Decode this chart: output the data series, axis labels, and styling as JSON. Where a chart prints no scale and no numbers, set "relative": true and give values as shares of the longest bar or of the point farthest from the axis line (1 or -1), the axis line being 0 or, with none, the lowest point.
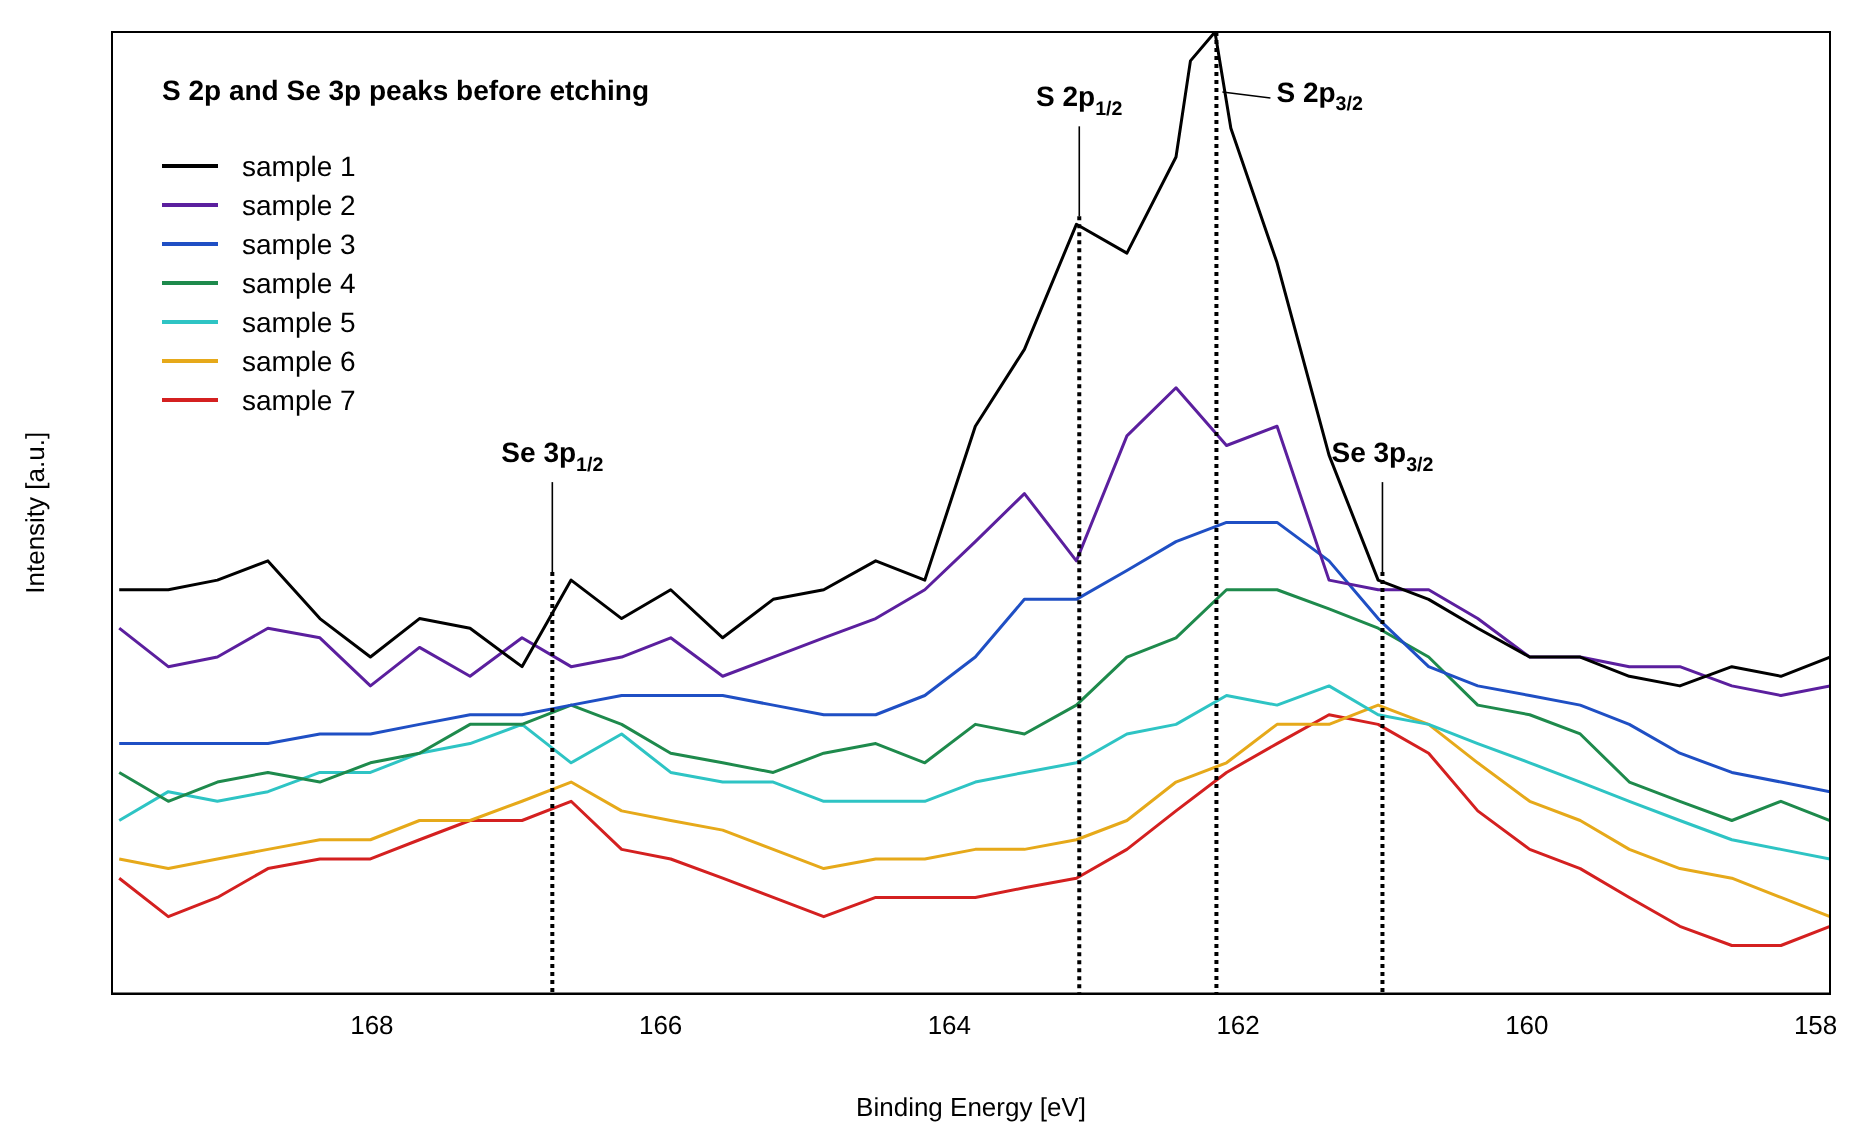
{
  "chart_data": {
    "type": "line",
    "title": "S 2p and Se 3p peaks before etching",
    "xlabel": "Binding Energy [eV]",
    "ylabel": "Intensity [a.u.]",
    "relative": true,
    "legend": "top left",
    "grid": false,
    "xlim": [
      169.8,
      157.9
    ],
    "xticks": [
      168,
      166,
      164,
      162,
      160,
      158
    ],
    "x": [
      169.75,
      169.41,
      169.07,
      168.72,
      168.36,
      168.01,
      167.67,
      167.32,
      166.96,
      166.62,
      166.27,
      165.93,
      165.57,
      165.22,
      164.87,
      164.51,
      164.17,
      163.82,
      163.48,
      163.12,
      162.77,
      162.43,
      162.08,
      161.73,
      161.37,
      161.03,
      160.68,
      160.34,
      159.98,
      159.63,
      159.29,
      158.94,
      158.58,
      158.24,
      157.9
    ],
    "series": [
      {
        "name": "sample 1",
        "color": "#000000",
        "x": [
          169.75,
          169.41,
          169.07,
          168.72,
          168.36,
          168.01,
          167.67,
          167.32,
          166.96,
          166.62,
          166.27,
          165.93,
          165.57,
          165.22,
          164.87,
          164.51,
          164.17,
          163.82,
          163.48,
          163.12,
          162.77,
          162.43,
          162.33,
          162.16,
          162.05,
          161.73,
          161.37,
          161.03,
          160.68,
          160.34,
          159.98,
          159.63,
          159.29,
          158.94,
          158.58,
          158.24,
          157.9
        ],
        "values": [
          0.42,
          0.42,
          0.43,
          0.45,
          0.39,
          0.35,
          0.39,
          0.38,
          0.34,
          0.43,
          0.39,
          0.42,
          0.37,
          0.41,
          0.42,
          0.45,
          0.43,
          0.59,
          0.67,
          0.8,
          0.77,
          0.87,
          0.97,
          1,
          0.9,
          0.76,
          0.56,
          0.43,
          0.41,
          0.38,
          0.35,
          0.35,
          0.33,
          0.32,
          0.34,
          0.33,
          0.35
        ]
      },
      {
        "name": "sample 2",
        "color": "#5b1f9e",
        "values": [
          0.38,
          0.34,
          0.35,
          0.38,
          0.37,
          0.32,
          0.36,
          0.33,
          0.37,
          0.34,
          0.35,
          0.37,
          0.33,
          0.35,
          0.37,
          0.39,
          0.42,
          0.47,
          0.52,
          0.45,
          0.58,
          0.63,
          0.57,
          0.59,
          0.43,
          0.42,
          0.42,
          0.39,
          0.35,
          0.35,
          0.34,
          0.34,
          0.32,
          0.31,
          0.32
        ]
      },
      {
        "name": "sample 3",
        "color": "#1f4fc4",
        "values": [
          0.26,
          0.26,
          0.26,
          0.26,
          0.27,
          0.27,
          0.28,
          0.29,
          0.29,
          0.3,
          0.31,
          0.31,
          0.31,
          0.3,
          0.29,
          0.29,
          0.31,
          0.35,
          0.41,
          0.41,
          0.44,
          0.47,
          0.49,
          0.49,
          0.45,
          0.39,
          0.34,
          0.32,
          0.31,
          0.3,
          0.28,
          0.25,
          0.23,
          0.22,
          0.21
        ]
      },
      {
        "name": "sample 4",
        "color": "#1e8a4c",
        "values": [
          0.23,
          0.2,
          0.22,
          0.23,
          0.22,
          0.24,
          0.25,
          0.28,
          0.28,
          0.3,
          0.28,
          0.25,
          0.24,
          0.23,
          0.25,
          0.26,
          0.24,
          0.28,
          0.27,
          0.3,
          0.35,
          0.37,
          0.42,
          0.42,
          0.4,
          0.38,
          0.35,
          0.3,
          0.29,
          0.27,
          0.22,
          0.2,
          0.18,
          0.2,
          0.18
        ]
      },
      {
        "name": "sample 5",
        "color": "#2ec4c4",
        "values": [
          0.18,
          0.21,
          0.2,
          0.21,
          0.23,
          0.23,
          0.25,
          0.26,
          0.28,
          0.24,
          0.27,
          0.23,
          0.22,
          0.22,
          0.2,
          0.2,
          0.2,
          0.22,
          0.23,
          0.24,
          0.27,
          0.28,
          0.31,
          0.3,
          0.32,
          0.29,
          0.28,
          0.26,
          0.24,
          0.22,
          0.2,
          0.18,
          0.16,
          0.15,
          0.14
        ]
      },
      {
        "name": "sample 6",
        "color": "#e6a91a",
        "values": [
          0.14,
          0.13,
          0.14,
          0.15,
          0.16,
          0.16,
          0.18,
          0.18,
          0.2,
          0.22,
          0.19,
          0.18,
          0.17,
          0.15,
          0.13,
          0.14,
          0.14,
          0.15,
          0.15,
          0.16,
          0.18,
          0.22,
          0.24,
          0.28,
          0.28,
          0.3,
          0.28,
          0.24,
          0.2,
          0.18,
          0.15,
          0.13,
          0.12,
          0.1,
          0.08
        ]
      },
      {
        "name": "sample 7",
        "color": "#d42020",
        "values": [
          0.12,
          0.08,
          0.1,
          0.13,
          0.14,
          0.14,
          0.16,
          0.18,
          0.18,
          0.2,
          0.15,
          0.14,
          0.12,
          0.1,
          0.08,
          0.1,
          0.1,
          0.1,
          0.11,
          0.12,
          0.15,
          0.19,
          0.23,
          0.26,
          0.29,
          0.28,
          0.25,
          0.19,
          0.15,
          0.13,
          0.1,
          0.07,
          0.05,
          0.05,
          0.07
        ]
      }
    ],
    "ref_lines": [
      {
        "axis": "x",
        "value": 166.75,
        "label": "Se 3p$_{1/2}$",
        "color": "#000000",
        "line_style": "dotted"
      },
      {
        "axis": "x",
        "value": 163.1,
        "label": "S 2p$_{1/2}$",
        "color": "#000000",
        "line_style": "dotted"
      },
      {
        "axis": "x",
        "value": 162.15,
        "label": "S 2p$_{3/2}$",
        "color": "#000000",
        "line_style": "dotted"
      },
      {
        "axis": "x",
        "value": 161.0,
        "label": "Se 3p$_{3/2}$",
        "color": "#000000",
        "line_style": "dotted"
      }
    ]
  }
}
